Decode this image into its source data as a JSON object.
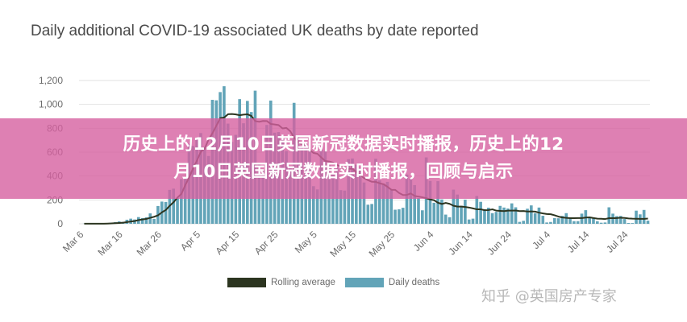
{
  "colors": {
    "bars": "#62a4b8",
    "rolling_line": "#2c3520",
    "banner": "#d660a0",
    "grid": "#e2e2e2"
  },
  "banner": {
    "line1": "历史上的12月10日英国新冠数据实时播报，历史上的12",
    "line2": "月10日英国新冠数据实时播报，回顾与启示"
  },
  "watermark": "知乎 @英国房产专家",
  "chart_data": {
    "type": "bar",
    "title": "Daily additional COVID-19 associated UK deaths by date reported",
    "y_ticks": [
      "0",
      "200",
      "400",
      "600",
      "800",
      "1,000",
      "1,200"
    ],
    "ylim": [
      0,
      1200
    ],
    "x_ticks": [
      "Mar 6",
      "Mar 16",
      "Mar 26",
      "Apr 5",
      "Apr 15",
      "Apr 25",
      "May 5",
      "May 15",
      "May 25",
      "Jun 4",
      "Jun 14",
      "Jun 24",
      "Jul 4",
      "Jul 14",
      "Jul 24"
    ],
    "x_start": "Mar 6",
    "grid": true,
    "legend_position": "bottom",
    "series": [
      {
        "name": "Daily deaths",
        "kind": "bar",
        "values": [
          1,
          0,
          1,
          1,
          2,
          2,
          1,
          10,
          14,
          20,
          16,
          34,
          43,
          36,
          56,
          48,
          54,
          87,
          41,
          149,
          186,
          183,
          284,
          294,
          215,
          374,
          381,
          670,
          652,
          714,
          760,
          644,
          568,
          1038,
          1034,
          1103,
          1152,
          839,
          686,
          745,
          1044,
          842,
          1029,
          936,
          1115,
          498,
          449,
          828,
          1032,
          763,
          768,
          714,
          609,
          468,
          1013,
          733,
          639,
          674,
          626,
          315,
          288,
          649,
          608,
          491,
          428,
          469,
          282,
          278,
          541,
          547,
          494,
          468,
          346,
          160,
          166,
          545,
          363,
          338,
          351,
          282,
          118,
          121,
          134,
          412,
          377,
          324,
          215,
          113,
          556,
          359,
          176,
          357,
          204,
          77,
          55,
          286,
          245,
          151,
          202,
          36,
          43,
          233,
          184,
          122,
          135,
          89,
          100,
          150,
          136,
          128,
          171,
          138,
          16,
          25,
          126,
          154,
          88,
          136,
          67,
          11,
          15,
          48,
          46,
          66,
          89,
          46,
          22,
          22,
          85,
          114,
          53,
          49,
          21,
          9,
          11,
          138,
          85,
          64,
          66,
          40,
          7,
          6,
          110,
          79,
          116,
          26
        ]
      },
      {
        "name": "Rolling average",
        "kind": "line",
        "values": [
          1,
          1,
          1,
          1,
          1,
          1,
          2,
          3,
          5,
          7,
          9,
          14,
          19,
          23,
          31,
          36,
          41,
          50,
          59,
          71,
          96,
          116,
          151,
          181,
          220,
          250,
          324,
          389,
          464,
          530,
          603,
          631,
          706,
          759,
          822,
          885,
          890,
          918,
          919,
          916,
          909,
          914,
          917,
          903,
          860,
          854,
          861,
          860,
          836,
          832,
          827,
          799,
          803,
          775,
          721,
          684,
          665,
          665,
          619,
          593,
          586,
          555,
          526,
          522,
          513,
          492,
          481,
          462,
          461,
          461,
          433,
          409,
          382,
          365,
          352,
          351,
          339,
          331,
          310,
          285,
          284,
          258,
          241,
          242,
          254,
          233,
          228,
          222,
          214,
          204,
          197,
          176,
          166,
          175,
          167,
          151,
          144,
          144,
          141,
          136,
          129,
          121,
          121,
          114,
          115,
          121,
          110,
          108,
          106,
          110,
          110,
          111,
          106,
          107,
          103,
          104,
          102,
          93,
          87,
          82,
          80,
          71,
          60,
          53,
          50,
          47,
          47,
          48,
          48,
          52,
          54,
          48,
          43,
          42,
          40,
          47,
          47,
          48,
          51,
          49,
          45,
          43,
          42,
          41,
          41,
          44
        ]
      }
    ]
  }
}
